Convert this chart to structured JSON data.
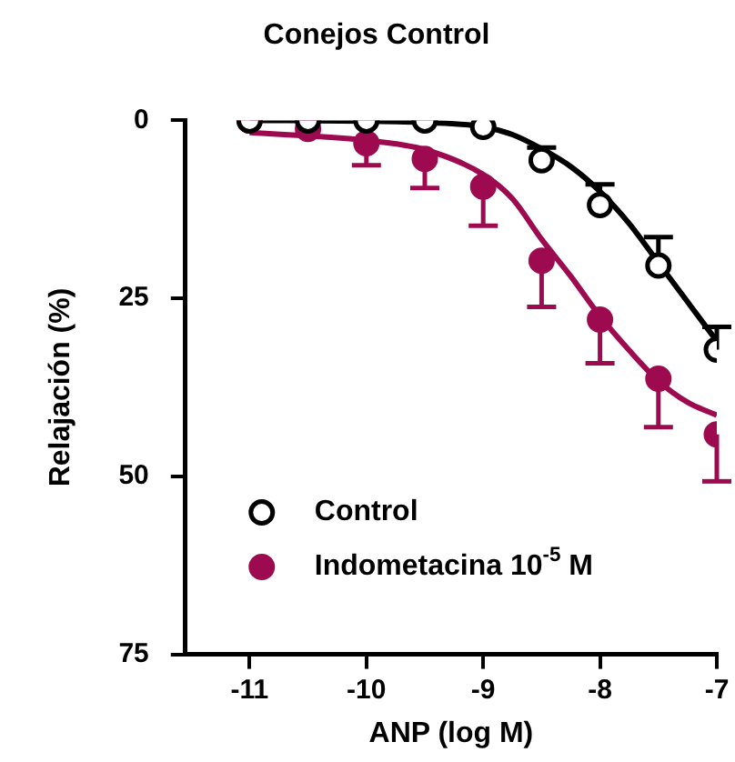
{
  "chart_data": {
    "type": "scatter",
    "title": "Conejos Control",
    "xlabel": "ANP (log M)",
    "ylabel": "Relajación (%)",
    "xlim": [
      -11.55,
      -7
    ],
    "xticks": [
      -11,
      -10,
      -9,
      -8,
      -7
    ],
    "ylim": [
      75,
      0
    ],
    "yticks": [
      0,
      25,
      50,
      75
    ],
    "grid": false,
    "legend": "bottom left",
    "marker": "circle",
    "series": [
      {
        "name": "Control",
        "color": "#000000",
        "x": [
          -11,
          -10.5,
          -10,
          -9.5,
          -9,
          -8.5,
          -8,
          -7.5,
          -7
        ],
        "values": [
          0,
          0,
          0,
          0,
          0.9,
          5.6,
          11.9,
          20.4,
          32.2
        ],
        "errors": [
          null,
          null,
          null,
          null,
          null,
          [
            3.8,
            5.6
          ],
          [
            9,
            11.9
          ],
          [
            16.4,
            20.4
          ],
          [
            29,
            32.2
          ]
        ]
      },
      {
        "name": "Indometacina 10$^{-5}$ M",
        "color": "#9e0a4f",
        "x": [
          -11,
          -10.5,
          -10,
          -9.5,
          -9,
          -8.5,
          -8,
          -7.5,
          -7
        ],
        "values": [
          0,
          1.2,
          3.2,
          5.4,
          9.3,
          19.7,
          28,
          36.3,
          44.1
        ],
        "errors": [
          null,
          null,
          [
            3.2,
            6.3
          ],
          [
            5.4,
            9.5
          ],
          [
            9.3,
            14.8
          ],
          [
            19.7,
            26.2
          ],
          [
            28,
            34.1
          ],
          [
            36.3,
            43.1
          ],
          [
            44.1,
            50.7
          ]
        ]
      },
      {
        "type": "line",
        "marker": "none",
        "color": "#000000",
        "x": [
          -11,
          -10,
          -9.5,
          -9,
          -8.75,
          -8.5,
          -8.25,
          -8,
          -7.75,
          -7.5,
          -7.25,
          -7
        ],
        "values": [
          0,
          0.1,
          0.3,
          0.9,
          2,
          4,
          6.5,
          10,
          14.5,
          20,
          25.5,
          31
        ]
      },
      {
        "type": "line",
        "marker": "none",
        "color": "#9e0a4f",
        "x": [
          -11,
          -10,
          -9.5,
          -9,
          -8.75,
          -8.5,
          -8.25,
          -8,
          -7.75,
          -7.5,
          -7.25,
          -7
        ],
        "values": [
          1.7,
          2.8,
          4.1,
          7.6,
          11,
          16.7,
          21.9,
          27.5,
          32.3,
          36.6,
          39.6,
          41.4
        ]
      }
    ]
  }
}
